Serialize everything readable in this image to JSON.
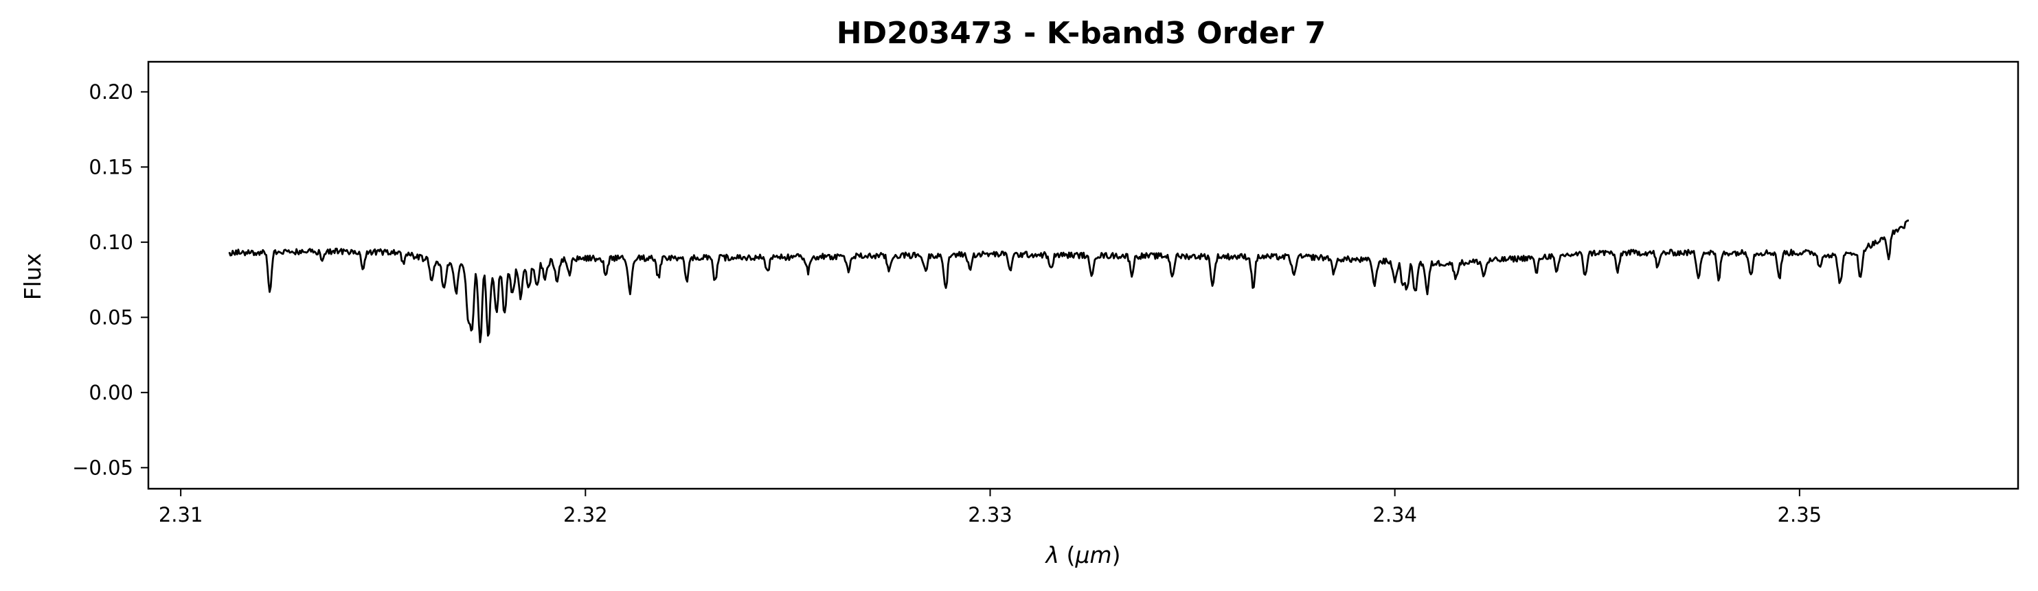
{
  "chart_data": {
    "type": "line",
    "title": "HD203473 - K-band3 Order 7",
    "xlabel": {
      "symbol": "λ",
      "open": " (",
      "unit": "μm",
      "close": ")"
    },
    "ylabel": "Flux",
    "xlim": [
      2.3092,
      2.3554
    ],
    "ylim": [
      -0.064,
      0.22
    ],
    "xticks": [
      {
        "value": 2.31,
        "label": "2.31"
      },
      {
        "value": 2.32,
        "label": "2.32"
      },
      {
        "value": 2.33,
        "label": "2.33"
      },
      {
        "value": 2.34,
        "label": "2.34"
      },
      {
        "value": 2.35,
        "label": "2.35"
      }
    ],
    "yticks": [
      {
        "value": -0.05,
        "label": "−0.05"
      },
      {
        "value": 0.0,
        "label": "0.00"
      },
      {
        "value": 0.05,
        "label": "0.05"
      },
      {
        "value": 0.1,
        "label": "0.10"
      },
      {
        "value": 0.15,
        "label": "0.15"
      },
      {
        "value": 0.2,
        "label": "0.20"
      }
    ],
    "grid": false,
    "series": [
      {
        "color": "#000000",
        "x_start": 2.3112,
        "x_end": 2.3527,
        "continuum_anchors": [
          [
            2.3112,
            0.093
          ],
          [
            2.314,
            0.094
          ],
          [
            2.3155,
            0.093
          ],
          [
            2.3165,
            0.085
          ],
          [
            2.318,
            0.082
          ],
          [
            2.3195,
            0.089
          ],
          [
            2.325,
            0.09
          ],
          [
            2.33,
            0.092
          ],
          [
            2.333,
            0.091
          ],
          [
            2.338,
            0.09
          ],
          [
            2.3405,
            0.086
          ],
          [
            2.3415,
            0.086
          ],
          [
            2.345,
            0.093
          ],
          [
            2.3505,
            0.093
          ],
          [
            2.351,
            0.09
          ],
          [
            2.3515,
            0.095
          ],
          [
            2.352,
            0.101
          ],
          [
            2.3524,
            0.108
          ],
          [
            2.3527,
            0.113
          ]
        ],
        "absorption_lines": [
          [
            2.3122,
            0.025
          ],
          [
            2.3135,
            0.007
          ],
          [
            2.3145,
            0.013
          ],
          [
            2.3155,
            0.006
          ],
          [
            2.3162,
            0.012
          ],
          [
            2.3165,
            0.016
          ],
          [
            2.3168,
            0.018
          ],
          [
            2.3171,
            0.034
          ],
          [
            2.3172,
            0.04
          ],
          [
            2.3174,
            0.05
          ],
          [
            2.3176,
            0.047
          ],
          [
            2.3178,
            0.03
          ],
          [
            2.318,
            0.03
          ],
          [
            2.3182,
            0.018
          ],
          [
            2.3184,
            0.022
          ],
          [
            2.3186,
            0.016
          ],
          [
            2.3188,
            0.015
          ],
          [
            2.319,
            0.012
          ],
          [
            2.3193,
            0.016
          ],
          [
            2.3196,
            0.01
          ],
          [
            2.3205,
            0.01
          ],
          [
            2.3211,
            0.024
          ],
          [
            2.3218,
            0.013
          ],
          [
            2.3225,
            0.016
          ],
          [
            2.3232,
            0.016
          ],
          [
            2.3245,
            0.01
          ],
          [
            2.3255,
            0.01
          ],
          [
            2.3265,
            0.01
          ],
          [
            2.3275,
            0.01
          ],
          [
            2.3284,
            0.011
          ],
          [
            2.3289,
            0.024
          ],
          [
            2.3295,
            0.01
          ],
          [
            2.3305,
            0.01
          ],
          [
            2.3315,
            0.01
          ],
          [
            2.3325,
            0.014
          ],
          [
            2.3335,
            0.012
          ],
          [
            2.3345,
            0.013
          ],
          [
            2.3355,
            0.02
          ],
          [
            2.3365,
            0.02
          ],
          [
            2.3375,
            0.013
          ],
          [
            2.3385,
            0.01
          ],
          [
            2.3395,
            0.017
          ],
          [
            2.34,
            0.013
          ],
          [
            2.3402,
            0.015
          ],
          [
            2.3403,
            0.016
          ],
          [
            2.3405,
            0.02
          ],
          [
            2.3408,
            0.02
          ],
          [
            2.3415,
            0.01
          ],
          [
            2.3422,
            0.01
          ],
          [
            2.3435,
            0.01
          ],
          [
            2.344,
            0.012
          ],
          [
            2.3447,
            0.014
          ],
          [
            2.3455,
            0.013
          ],
          [
            2.3465,
            0.01
          ],
          [
            2.3475,
            0.016
          ],
          [
            2.348,
            0.018
          ],
          [
            2.3488,
            0.014
          ],
          [
            2.3495,
            0.017
          ],
          [
            2.3505,
            0.01
          ],
          [
            2.351,
            0.018
          ],
          [
            2.3515,
            0.02
          ],
          [
            2.3522,
            0.014
          ]
        ]
      }
    ]
  }
}
